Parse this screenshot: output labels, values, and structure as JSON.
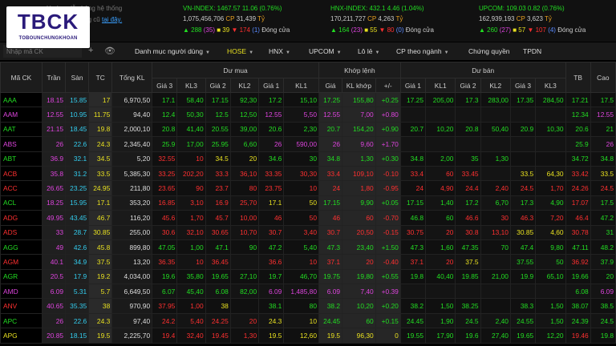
{
  "logo": {
    "main": "TBCK",
    "sub": "TOBOUNCHUNGKHOAN"
  },
  "notice": {
    "line1": "Hướng dẫn bảng hệ thống",
    "line2_prefix": "Bảng giá phong cũ",
    "line2_link": "tại đây."
  },
  "indices": [
    {
      "name_line": "VN-INDEX: 1467.57  11.06 (0.76%)",
      "vol": "1,075,456,706",
      "cp_label": "CP",
      "value": "31,439",
      "unit": "Tỷ",
      "up": "288",
      "ceil": "(35)",
      "flat": "39",
      "down": "174",
      "floor": "(1)",
      "status": "Đóng cửa"
    },
    {
      "name_line": "HNX-INDEX: 432.1  4.46 (1.04%)",
      "vol": "170,211,727",
      "cp_label": "CP",
      "value": "4,263",
      "unit": "Tỷ",
      "up": "164",
      "ceil": "(23)",
      "flat": "55",
      "down": "80",
      "floor": "(0)",
      "status": "Đóng cửa"
    },
    {
      "name_line": "UPCOM: 109.03  0.82 (0.76%)",
      "vol": "162,939,193",
      "cp_label": "CP",
      "value": "3,623",
      "unit": "Tỷ",
      "up": "260",
      "ceil": "(27)",
      "flat": "57",
      "down": "107",
      "floor": "(4)",
      "status": "Đóng cửa"
    }
  ],
  "toolbar": {
    "search_placeholder": "Nhập mã CK",
    "menus": [
      "Danh mục người dùng",
      "HOSE",
      "HNX",
      "UPCOM",
      "Lô lẻ",
      "CP theo ngành",
      "Chứng quyền",
      "TPDN"
    ],
    "active_menu": "HOSE"
  },
  "headers": {
    "symbol": "Mã CK",
    "ceil": "Trần",
    "floor": "Sàn",
    "ref": "TC",
    "total_vol": "Tổng KL",
    "bid_group": "Dư mua",
    "match_group": "Khớp lệnh",
    "ask_group": "Dư bán",
    "bid_cols": [
      "Giá 3",
      "KL3",
      "Giá 2",
      "KL2",
      "Giá 1",
      "KL1"
    ],
    "match_cols": [
      "Giá",
      "KL khớp",
      "+/-"
    ],
    "ask_cols": [
      "Giá 1",
      "KL1",
      "Giá 2",
      "KL2",
      "Giá 3",
      "KL3"
    ],
    "tail_cols": [
      "TB",
      "Cao"
    ]
  },
  "colors": {
    "green": "#22dd22",
    "red": "#ff3030",
    "yellow": "#e8e020",
    "ceil": "#dd44dd",
    "floor": "#33ccee"
  },
  "rows": [
    {
      "sym": "AAA",
      "c": "g",
      "ceil": "18.15",
      "floor": "15.85",
      "ref": "17",
      "vol": "6,970,50",
      "b3": [
        "17.1",
        "58,40",
        "g"
      ],
      "b2": [
        "17.15",
        "92,30",
        "g"
      ],
      "b1": [
        "17.2",
        "15,10",
        "g"
      ],
      "m": [
        "17.25",
        "155,80",
        "+0.25",
        "g"
      ],
      "a1": [
        "17.25",
        "205,00",
        "g"
      ],
      "a2": [
        "17.3",
        "283,00",
        "g"
      ],
      "a3": [
        "17.35",
        "284,50",
        "g"
      ],
      "tb": [
        "17.21",
        "g"
      ],
      "hi": [
        "17.5",
        "g"
      ]
    },
    {
      "sym": "AAM",
      "c": "p",
      "ceil": "12.55",
      "floor": "10.95",
      "ref": "11.75",
      "vol": "94,40",
      "b3": [
        "12.4",
        "50,30",
        "g"
      ],
      "b2": [
        "12.5",
        "12,50",
        "g"
      ],
      "b1": [
        "12.55",
        "5,50",
        "p"
      ],
      "m": [
        "12.55",
        "7,00",
        "+0.80",
        "p"
      ],
      "a1": [
        "",
        "",
        ""
      ],
      "a2": [
        "",
        "",
        ""
      ],
      "a3": [
        "",
        "",
        ""
      ],
      "tb": [
        "12.34",
        "g"
      ],
      "hi": [
        "12.55",
        "p"
      ]
    },
    {
      "sym": "AAT",
      "c": "g",
      "ceil": "21.15",
      "floor": "18.45",
      "ref": "19.8",
      "vol": "2,000,10",
      "b3": [
        "20.8",
        "41,40",
        "g"
      ],
      "b2": [
        "20.55",
        "39,00",
        "g"
      ],
      "b1": [
        "20.6",
        "2,30",
        "g"
      ],
      "m": [
        "20.7",
        "154,20",
        "+0.90",
        "g"
      ],
      "a1": [
        "20.7",
        "10,20",
        "g"
      ],
      "a2": [
        "20.8",
        "50,40",
        "g"
      ],
      "a3": [
        "20.9",
        "10,30",
        "g"
      ],
      "tb": [
        "20.6",
        "g"
      ],
      "hi": [
        "21",
        "g"
      ]
    },
    {
      "sym": "ABS",
      "c": "p",
      "ceil": "26",
      "floor": "22.6",
      "ref": "24.3",
      "vol": "2,345,40",
      "b3": [
        "25.9",
        "17,00",
        "g"
      ],
      "b2": [
        "25.95",
        "6,60",
        "g"
      ],
      "b1": [
        "26",
        "590,00",
        "p"
      ],
      "m": [
        "26",
        "9,60",
        "+1.70",
        "p"
      ],
      "a1": [
        "",
        "",
        ""
      ],
      "a2": [
        "",
        "",
        ""
      ],
      "a3": [
        "",
        "",
        ""
      ],
      "tb": [
        "25.9",
        "g"
      ],
      "hi": [
        "26",
        "p"
      ]
    },
    {
      "sym": "ABT",
      "c": "g",
      "ceil": "36.9",
      "floor": "32.1",
      "ref": "34.5",
      "vol": "5,20",
      "b3": [
        "32.55",
        "10",
        "rd"
      ],
      "b2": [
        "34.5",
        "20",
        "y"
      ],
      "b1": [
        "34.6",
        "30",
        "g"
      ],
      "m": [
        "34.8",
        "1,30",
        "+0.30",
        "g"
      ],
      "a1": [
        "34.8",
        "2,00",
        "g"
      ],
      "a2": [
        "35",
        "1,30",
        "g"
      ],
      "a3": [
        "",
        "",
        ""
      ],
      "tb": [
        "34.72",
        "g"
      ],
      "hi": [
        "34.8",
        "g"
      ]
    },
    {
      "sym": "ACB",
      "c": "rd",
      "ceil": "35.8",
      "floor": "31.2",
      "ref": "33.5",
      "vol": "5,385,30",
      "b3": [
        "33.25",
        "202,20",
        "rd"
      ],
      "b2": [
        "33.3",
        "36,10",
        "rd"
      ],
      "b1": [
        "33.35",
        "30,30",
        "rd"
      ],
      "m": [
        "33.4",
        "109,10",
        "-0.10",
        "rd"
      ],
      "a1": [
        "33.4",
        "60",
        "rd"
      ],
      "a2": [
        "33.45",
        "",
        "rd"
      ],
      "a3": [
        "33.5",
        "64,30",
        "y"
      ],
      "tb": [
        "33.42",
        "rd"
      ],
      "hi": [
        "33.5",
        "y"
      ]
    },
    {
      "sym": "ACC",
      "c": "rd",
      "ceil": "26.65",
      "floor": "23.25",
      "ref": "24.95",
      "vol": "211,80",
      "b3": [
        "23.65",
        "90",
        "rd"
      ],
      "b2": [
        "23.7",
        "80",
        "rd"
      ],
      "b1": [
        "23.75",
        "10",
        "rd"
      ],
      "m": [
        "24",
        "1,80",
        "-0.95",
        "rd"
      ],
      "a1": [
        "24",
        "4,90",
        "rd"
      ],
      "a2": [
        "24.4",
        "2,40",
        "rd"
      ],
      "a3": [
        "24.5",
        "1,70",
        "rd"
      ],
      "tb": [
        "24.26",
        "rd"
      ],
      "hi": [
        "24.5",
        "rd"
      ]
    },
    {
      "sym": "ACL",
      "c": "g",
      "ceil": "18.25",
      "floor": "15.95",
      "ref": "17.1",
      "vol": "353,20",
      "b3": [
        "16.85",
        "3,10",
        "rd"
      ],
      "b2": [
        "16.9",
        "25,70",
        "rd"
      ],
      "b1": [
        "17.1",
        "50",
        "y"
      ],
      "m": [
        "17.15",
        "9,90",
        "+0.05",
        "g"
      ],
      "a1": [
        "17.15",
        "1,40",
        "g"
      ],
      "a2": [
        "17.2",
        "6,70",
        "g"
      ],
      "a3": [
        "17.3",
        "4,90",
        "g"
      ],
      "tb": [
        "17.07",
        "rd"
      ],
      "hi": [
        "17.5",
        "g"
      ]
    },
    {
      "sym": "ADG",
      "c": "rd",
      "ceil": "49.95",
      "floor": "43.45",
      "ref": "46.7",
      "vol": "116,20",
      "b3": [
        "45.6",
        "1,70",
        "rd"
      ],
      "b2": [
        "45.7",
        "10,00",
        "rd"
      ],
      "b1": [
        "46",
        "50",
        "rd"
      ],
      "m": [
        "46",
        "60",
        "-0.70",
        "rd"
      ],
      "a1": [
        "46.8",
        "60",
        "g"
      ],
      "a2": [
        "46.6",
        "30",
        "rd"
      ],
      "a3": [
        "46.3",
        "7,20",
        "rd"
      ],
      "tb": [
        "46.4",
        "rd"
      ],
      "hi": [
        "47.2",
        "g"
      ]
    },
    {
      "sym": "ADS",
      "c": "rd",
      "ceil": "33",
      "floor": "28.7",
      "ref": "30.85",
      "vol": "255,00",
      "b3": [
        "30.6",
        "32,10",
        "rd"
      ],
      "b2": [
        "30.65",
        "10,70",
        "rd"
      ],
      "b1": [
        "30.7",
        "3,40",
        "rd"
      ],
      "m": [
        "30.7",
        "20,50",
        "-0.15",
        "rd"
      ],
      "a1": [
        "30.75",
        "20",
        "rd"
      ],
      "a2": [
        "30.8",
        "13,10",
        "rd"
      ],
      "a3": [
        "30.85",
        "4,60",
        "y"
      ],
      "tb": [
        "30.78",
        "rd"
      ],
      "hi": [
        "31",
        "g"
      ]
    },
    {
      "sym": "AGG",
      "c": "g",
      "ceil": "49",
      "floor": "42.6",
      "ref": "45.8",
      "vol": "899,80",
      "b3": [
        "47.05",
        "1,00",
        "g"
      ],
      "b2": [
        "47.1",
        "90",
        "g"
      ],
      "b1": [
        "47.2",
        "5,40",
        "g"
      ],
      "m": [
        "47.3",
        "23,40",
        "+1.50",
        "g"
      ],
      "a1": [
        "47.3",
        "1,60",
        "g"
      ],
      "a2": [
        "47.35",
        "70",
        "g"
      ],
      "a3": [
        "47.4",
        "9,80",
        "g"
      ],
      "tb": [
        "47.11",
        "g"
      ],
      "hi": [
        "48.2",
        "g"
      ]
    },
    {
      "sym": "AGM",
      "c": "rd",
      "ceil": "40.1",
      "floor": "34.9",
      "ref": "37.5",
      "vol": "13,20",
      "b3": [
        "36.35",
        "10",
        "rd"
      ],
      "b2": [
        "36.45",
        "",
        "rd"
      ],
      "b1": [
        "36.6",
        "10",
        "rd"
      ],
      "m": [
        "37.1",
        "20",
        "-0.40",
        "rd"
      ],
      "a1": [
        "37.1",
        "20",
        "rd"
      ],
      "a2": [
        "37.5",
        "",
        "y"
      ],
      "a3": [
        "37.55",
        "50",
        "g"
      ],
      "tb": [
        "36.92",
        "rd"
      ],
      "hi": [
        "37.9",
        "g"
      ]
    },
    {
      "sym": "AGR",
      "c": "g",
      "ceil": "20.5",
      "floor": "17.9",
      "ref": "19.2",
      "vol": "4,034,00",
      "b3": [
        "19.6",
        "35,80",
        "g"
      ],
      "b2": [
        "19.65",
        "27,10",
        "g"
      ],
      "b1": [
        "19.7",
        "46,70",
        "g"
      ],
      "m": [
        "19.75",
        "19,80",
        "+0.55",
        "g"
      ],
      "a1": [
        "19.8",
        "40,40",
        "g"
      ],
      "a2": [
        "19.85",
        "21,00",
        "g"
      ],
      "a3": [
        "19.9",
        "65,10",
        "g"
      ],
      "tb": [
        "19.66",
        "g"
      ],
      "hi": [
        "20",
        "g"
      ]
    },
    {
      "sym": "AMD",
      "c": "p",
      "ceil": "6.09",
      "floor": "5.31",
      "ref": "5.7",
      "vol": "6,649,50",
      "b3": [
        "6.07",
        "45,40",
        "g"
      ],
      "b2": [
        "6.08",
        "82,00",
        "g"
      ],
      "b1": [
        "6.09",
        "1,485,80",
        "p"
      ],
      "m": [
        "6.09",
        "7,40",
        "+0.39",
        "p"
      ],
      "a1": [
        "",
        "",
        ""
      ],
      "a2": [
        "",
        "",
        ""
      ],
      "a3": [
        "",
        "",
        ""
      ],
      "tb": [
        "6.08",
        "g"
      ],
      "hi": [
        "6.09",
        "p"
      ]
    },
    {
      "sym": "ANV",
      "c": "rd",
      "ceil": "40.65",
      "floor": "35.35",
      "ref": "38",
      "vol": "970,90",
      "b3": [
        "37.95",
        "1,00",
        "rd"
      ],
      "b2": [
        "38",
        "",
        "y"
      ],
      "b1": [
        "38.1",
        "80",
        "g"
      ],
      "m": [
        "38.2",
        "10,20",
        "+0.20",
        "g"
      ],
      "a1": [
        "38.2",
        "1,50",
        "g"
      ],
      "a2": [
        "38.25",
        "",
        "g"
      ],
      "a3": [
        "38.3",
        "1,50",
        "g"
      ],
      "tb": [
        "38.07",
        "g"
      ],
      "hi": [
        "38.5",
        "g"
      ]
    },
    {
      "sym": "APC",
      "c": "g",
      "ceil": "26",
      "floor": "22.6",
      "ref": "24.3",
      "vol": "97,40",
      "b3": [
        "24.2",
        "5,40",
        "rd"
      ],
      "b2": [
        "24.25",
        "20",
        "rd"
      ],
      "b1": [
        "24.3",
        "10",
        "y"
      ],
      "m": [
        "24.45",
        "60",
        "+0.15",
        "g"
      ],
      "a1": [
        "24.45",
        "1,90",
        "g"
      ],
      "a2": [
        "24.5",
        "2,40",
        "g"
      ],
      "a3": [
        "24.55",
        "1,50",
        "g"
      ],
      "tb": [
        "24.39",
        "g"
      ],
      "hi": [
        "24.5",
        "g"
      ]
    },
    {
      "sym": "APG",
      "c": "y",
      "ceil": "20.85",
      "floor": "18.15",
      "ref": "19.5",
      "vol": "2,225,70",
      "b3": [
        "19.4",
        "32,40",
        "rd"
      ],
      "b2": [
        "19.45",
        "1,30",
        "rd"
      ],
      "b1": [
        "19.5",
        "12,60",
        "y"
      ],
      "m": [
        "19.5",
        "96,30",
        "0",
        "y"
      ],
      "a1": [
        "19.55",
        "17,90",
        "g"
      ],
      "a2": [
        "19.6",
        "27,40",
        "g"
      ],
      "a3": [
        "19.65",
        "12,20",
        "g"
      ],
      "tb": [
        "19.46",
        "rd"
      ],
      "hi": [
        "19.8",
        "g"
      ]
    }
  ]
}
